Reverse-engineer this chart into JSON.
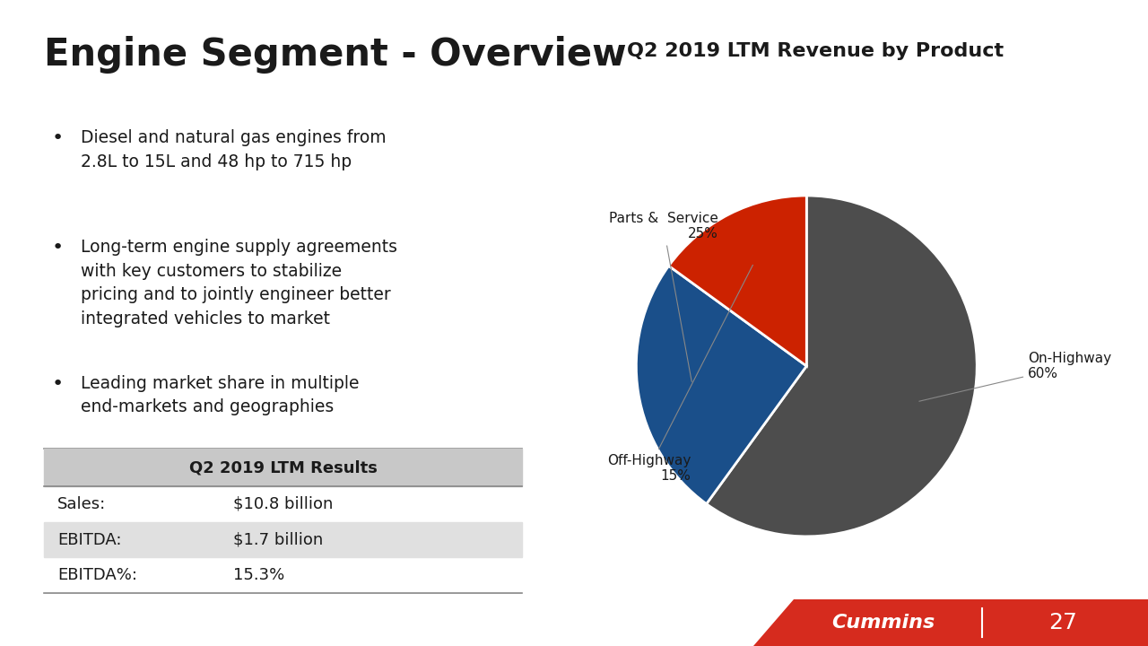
{
  "title": "Engine Segment - Overview",
  "background_color": "#ffffff",
  "bullets": [
    "Diesel and natural gas engines from\n2.8L to 15L and 48 hp to 715 hp",
    "Long-term engine supply agreements\nwith key customers to stabilize\npricing and to jointly engineer better\nintegrated vehicles to market",
    "Leading market share in multiple\nend-markets and geographies"
  ],
  "table_title": "Q2 2019 LTM Results",
  "table_rows": [
    [
      "Sales:",
      "$10.8 billion"
    ],
    [
      "EBITDA:",
      "$1.7 billion"
    ],
    [
      "EBITDA%:",
      "15.3%"
    ]
  ],
  "pie_title": "Q2 2019 LTM Revenue by Product",
  "pie_labels": [
    "On-Highway\n60%",
    "Parts &  Service\n25%",
    "Off-Highway\n15%"
  ],
  "pie_values": [
    60,
    25,
    15
  ],
  "pie_colors": [
    "#4d4d4d",
    "#1a4f8a",
    "#cc2200"
  ],
  "footer_color": "#d62b1e",
  "footer_text": "Cummins",
  "page_number": "27"
}
